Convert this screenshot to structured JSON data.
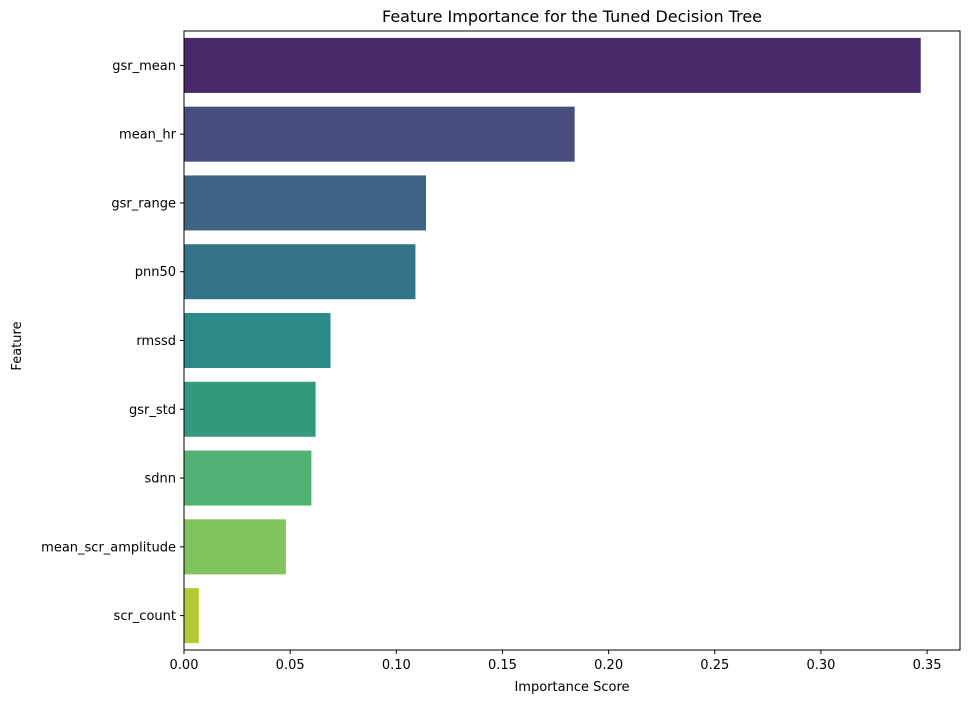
{
  "chart_data": {
    "type": "bar",
    "orientation": "horizontal",
    "title": "Feature Importance for the Tuned Decision Tree",
    "xlabel": "Importance Score",
    "ylabel": "Feature",
    "xlim": [
      0,
      0.3655
    ],
    "xticks": [
      "0.00",
      "0.05",
      "0.10",
      "0.15",
      "0.20",
      "0.25",
      "0.30",
      "0.35"
    ],
    "grid": false,
    "colormap": "viridis",
    "categories": [
      "gsr_mean",
      "mean_hr",
      "gsr_range",
      "pnn50",
      "rmssd",
      "gsr_std",
      "sdnn",
      "mean_scr_amplitude",
      "scr_count"
    ],
    "values": [
      0.347,
      0.184,
      0.114,
      0.109,
      0.069,
      0.062,
      0.06,
      0.048,
      0.007
    ],
    "colors": [
      "#482a6a",
      "#494c7f",
      "#3f6385",
      "#33748a",
      "#298a87",
      "#339a7e",
      "#52b275",
      "#81c45e",
      "#b0cc34"
    ]
  }
}
